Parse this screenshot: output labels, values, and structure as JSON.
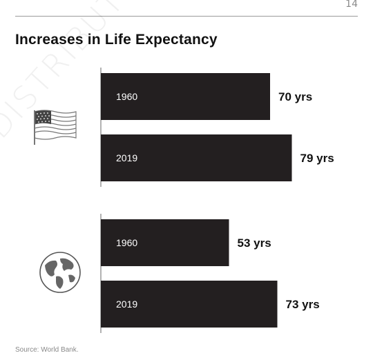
{
  "page": {
    "number": "14",
    "title": "Increases in Life Expectancy",
    "watermark": "DISTRIBUTION",
    "source": "Source: World Bank."
  },
  "icons": [
    "us-flag-icon",
    "globe-icon"
  ],
  "colors": {
    "bar": "#231f20",
    "bar_text": "#ffffff",
    "value_text": "#111111",
    "axis": "#666666"
  },
  "chart_data": {
    "type": "bar",
    "orientation": "horizontal",
    "unit": "yrs",
    "groups": [
      {
        "icon": "us-flag-icon",
        "bars": [
          {
            "category": "1960",
            "value": 70,
            "label": "70 yrs"
          },
          {
            "category": "2019",
            "value": 79,
            "label": "79 yrs"
          }
        ]
      },
      {
        "icon": "globe-icon",
        "bars": [
          {
            "category": "1960",
            "value": 53,
            "label": "53 yrs"
          },
          {
            "category": "2019",
            "value": 73,
            "label": "73 yrs"
          }
        ]
      }
    ],
    "title": "Increases in Life Expectancy",
    "xlabel": "",
    "ylabel": ""
  }
}
